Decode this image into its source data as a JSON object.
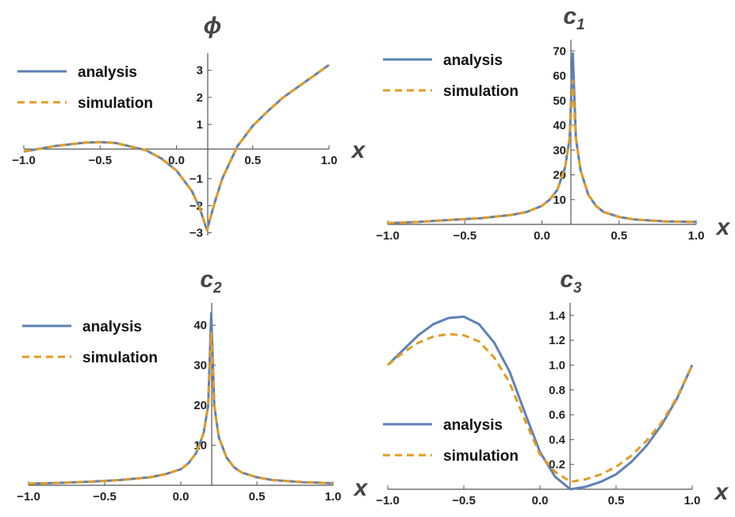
{
  "colors": {
    "analysis": "#5E81B5",
    "simulation": "#E19C24",
    "axis": "#555555"
  },
  "chart_data": [
    {
      "type": "line",
      "title": "ϕ",
      "title_sub": "",
      "xlabel": "x",
      "xlim": [
        -1.0,
        1.0
      ],
      "ylim": [
        -3.1,
        3.4
      ],
      "xticks": [
        -1.0,
        -0.5,
        0.0,
        0.5,
        1.0
      ],
      "xtick_labels": [
        "−1.0",
        "−0.5",
        "0.0",
        "0.5",
        "1.0"
      ],
      "yticks": [
        -3,
        -2,
        -1,
        1,
        2,
        3
      ],
      "ytick_labels": [
        "−3",
        "−2",
        "−1",
        "1",
        "2",
        "3"
      ],
      "legend": {
        "entries": [
          "analysis",
          "simulation"
        ],
        "position": "top-left"
      },
      "series": [
        {
          "name": "analysis",
          "x": [
            -1.0,
            -0.8,
            -0.6,
            -0.5,
            -0.4,
            -0.2,
            -0.1,
            0.0,
            0.1,
            0.15,
            0.2,
            0.25,
            0.3,
            0.35,
            0.4,
            0.5,
            0.6,
            0.7,
            0.8,
            0.9,
            1.0
          ],
          "y": [
            0.0,
            0.2,
            0.33,
            0.35,
            0.32,
            0.05,
            -0.25,
            -0.7,
            -1.45,
            -2.05,
            -2.9,
            -1.9,
            -1.0,
            -0.4,
            0.2,
            0.95,
            1.5,
            2.0,
            2.4,
            2.8,
            3.2
          ]
        },
        {
          "name": "simulation",
          "x": [
            -1.0,
            -0.8,
            -0.6,
            -0.5,
            -0.4,
            -0.2,
            -0.1,
            0.0,
            0.1,
            0.15,
            0.2,
            0.25,
            0.3,
            0.35,
            0.4,
            0.5,
            0.6,
            0.7,
            0.8,
            0.9,
            1.0
          ],
          "y": [
            0.0,
            0.2,
            0.33,
            0.35,
            0.32,
            0.05,
            -0.25,
            -0.7,
            -1.45,
            -2.05,
            -2.9,
            -1.9,
            -1.0,
            -0.4,
            0.2,
            0.95,
            1.5,
            2.0,
            2.4,
            2.8,
            3.2
          ]
        }
      ]
    },
    {
      "type": "line",
      "title": "c",
      "title_sub": "1",
      "xlabel": "x",
      "xlim": [
        -1.0,
        1.0
      ],
      "ylim": [
        0,
        72
      ],
      "xticks": [
        -1.0,
        -0.5,
        0.0,
        0.5,
        1.0
      ],
      "xtick_labels": [
        "−1.0",
        "−0.5",
        "0.0",
        "0.5",
        "1.0"
      ],
      "yticks": [
        10,
        20,
        30,
        40,
        50,
        60,
        70
      ],
      "ytick_labels": [
        "10",
        "20",
        "30",
        "40",
        "50",
        "60",
        "70"
      ],
      "legend": {
        "entries": [
          "analysis",
          "simulation"
        ],
        "position": "top-left"
      },
      "series": [
        {
          "name": "analysis",
          "x": [
            -1.0,
            -0.8,
            -0.6,
            -0.4,
            -0.2,
            -0.1,
            0.0,
            0.05,
            0.1,
            0.15,
            0.18,
            0.2,
            0.22,
            0.25,
            0.3,
            0.35,
            0.4,
            0.5,
            0.6,
            0.8,
            1.0
          ],
          "y": [
            0.5,
            1.0,
            1.8,
            2.5,
            3.8,
            5.0,
            7.5,
            10.0,
            14.0,
            23.0,
            35.0,
            69.0,
            35.0,
            22.0,
            12.0,
            7.5,
            5.0,
            3.0,
            2.0,
            1.2,
            1.0
          ]
        },
        {
          "name": "simulation",
          "x": [
            -1.0,
            -0.8,
            -0.6,
            -0.4,
            -0.2,
            -0.1,
            0.0,
            0.05,
            0.1,
            0.15,
            0.18,
            0.2,
            0.22,
            0.25,
            0.3,
            0.35,
            0.4,
            0.5,
            0.6,
            0.8,
            1.0
          ],
          "y": [
            0.5,
            1.0,
            1.8,
            2.5,
            3.8,
            5.0,
            7.5,
            10.0,
            14.0,
            23.0,
            35.0,
            58.0,
            35.0,
            22.0,
            12.0,
            7.5,
            5.0,
            3.0,
            2.0,
            1.2,
            1.0
          ]
        }
      ]
    },
    {
      "type": "line",
      "title": "c",
      "title_sub": "2",
      "xlabel": "x",
      "xlim": [
        -1.0,
        1.0
      ],
      "ylim": [
        0,
        44
      ],
      "xticks": [
        -1.0,
        -0.5,
        0.0,
        0.5,
        1.0
      ],
      "xtick_labels": [
        "−1.0",
        "−0.5",
        "0.0",
        "0.5",
        "1.0"
      ],
      "yticks": [
        10,
        20,
        30,
        40
      ],
      "ytick_labels": [
        "10",
        "20",
        "30",
        "40"
      ],
      "legend": {
        "entries": [
          "analysis",
          "simulation"
        ],
        "position": "top-left"
      },
      "series": [
        {
          "name": "analysis",
          "x": [
            -1.0,
            -0.8,
            -0.6,
            -0.4,
            -0.2,
            -0.1,
            0.0,
            0.05,
            0.1,
            0.15,
            0.18,
            0.2,
            0.22,
            0.25,
            0.3,
            0.35,
            0.4,
            0.5,
            0.6,
            0.8,
            1.0
          ],
          "y": [
            0.4,
            0.6,
            0.9,
            1.3,
            2.0,
            2.8,
            4.0,
            5.5,
            8.0,
            13.0,
            20.0,
            43.0,
            20.0,
            12.0,
            7.0,
            4.5,
            3.2,
            2.0,
            1.3,
            0.8,
            0.5
          ]
        },
        {
          "name": "simulation",
          "x": [
            -1.0,
            -0.8,
            -0.6,
            -0.4,
            -0.2,
            -0.1,
            0.0,
            0.05,
            0.1,
            0.15,
            0.18,
            0.2,
            0.22,
            0.25,
            0.3,
            0.35,
            0.4,
            0.5,
            0.6,
            0.8,
            1.0
          ],
          "y": [
            0.4,
            0.6,
            0.9,
            1.3,
            2.0,
            2.8,
            4.0,
            5.5,
            8.0,
            13.0,
            20.0,
            38.0,
            20.0,
            12.0,
            7.0,
            4.5,
            3.2,
            2.0,
            1.3,
            0.8,
            0.5
          ]
        }
      ]
    },
    {
      "type": "line",
      "title": "c",
      "title_sub": "3",
      "xlabel": "x",
      "xlim": [
        -1.0,
        1.0
      ],
      "ylim": [
        0,
        1.45
      ],
      "xticks": [
        -1.0,
        -0.5,
        0.0,
        0.5,
        1.0
      ],
      "xtick_labels": [
        "−1.0",
        "−0.5",
        "0.0",
        "0.5",
        "1.0"
      ],
      "yticks": [
        0.2,
        0.4,
        0.6,
        0.8,
        1.0,
        1.2,
        1.4
      ],
      "ytick_labels": [
        "0.2",
        "0.4",
        "0.6",
        "0.8",
        "1.0",
        "1.2",
        "1.4"
      ],
      "legend": {
        "entries": [
          "analysis",
          "simulation"
        ],
        "position": "bottom-left"
      },
      "series": [
        {
          "name": "analysis",
          "x": [
            -1.0,
            -0.9,
            -0.8,
            -0.7,
            -0.6,
            -0.5,
            -0.4,
            -0.3,
            -0.2,
            -0.1,
            0.0,
            0.1,
            0.2,
            0.3,
            0.4,
            0.5,
            0.6,
            0.7,
            0.8,
            0.9,
            1.0
          ],
          "y": [
            1.0,
            1.12,
            1.24,
            1.33,
            1.38,
            1.39,
            1.33,
            1.18,
            0.95,
            0.62,
            0.3,
            0.1,
            0.0,
            0.02,
            0.06,
            0.12,
            0.22,
            0.35,
            0.52,
            0.73,
            1.0
          ]
        },
        {
          "name": "simulation",
          "x": [
            -1.0,
            -0.9,
            -0.8,
            -0.7,
            -0.6,
            -0.5,
            -0.4,
            -0.3,
            -0.2,
            -0.1,
            0.0,
            0.1,
            0.2,
            0.3,
            0.4,
            0.5,
            0.6,
            0.7,
            0.8,
            0.9,
            1.0
          ],
          "y": [
            1.0,
            1.1,
            1.18,
            1.23,
            1.25,
            1.24,
            1.19,
            1.06,
            0.86,
            0.56,
            0.28,
            0.14,
            0.06,
            0.08,
            0.12,
            0.18,
            0.27,
            0.39,
            0.54,
            0.74,
            1.0
          ]
        }
      ]
    }
  ]
}
